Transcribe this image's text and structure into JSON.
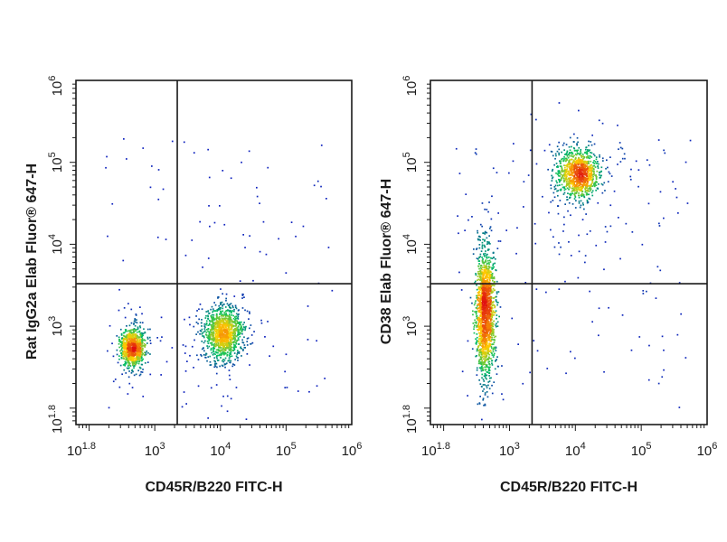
{
  "chart_data": [
    {
      "type": "scatter",
      "subtype": "flow-cytometry-density",
      "xlabel": "CD45R/B220 FITC-H",
      "ylabel": "Rat IgG2a Elab Fluor® 647-H",
      "xscale": "log",
      "yscale": "log",
      "xlim": [
        63,
        1000000
      ],
      "ylim": [
        63,
        1000000
      ],
      "x_ticks": [
        {
          "base": "10",
          "exp": "1.8",
          "value": 63
        },
        {
          "base": "10",
          "exp": "3",
          "value": 1000
        },
        {
          "base": "10",
          "exp": "4",
          "value": 10000
        },
        {
          "base": "10",
          "exp": "5",
          "value": 100000
        },
        {
          "base": "10",
          "exp": "6",
          "value": 1000000
        }
      ],
      "y_ticks": [
        {
          "base": "10",
          "exp": "1.8",
          "value": 63
        },
        {
          "base": "10",
          "exp": "3",
          "value": 1000
        },
        {
          "base": "10",
          "exp": "4",
          "value": 10000
        },
        {
          "base": "10",
          "exp": "5",
          "value": 100000
        },
        {
          "base": "10",
          "exp": "6",
          "value": 1000000
        }
      ],
      "gate": {
        "x": 2200,
        "y": 3300
      },
      "populations": [
        {
          "cx": 450,
          "cy": 560,
          "sx": 0.09,
          "sy": 0.12,
          "n": 900,
          "tail": 0.03
        },
        {
          "cx": 11000,
          "cy": 850,
          "sx": 0.15,
          "sy": 0.17,
          "n": 1200,
          "tail": 0.05
        }
      ],
      "background_n": 90
    },
    {
      "type": "scatter",
      "subtype": "flow-cytometry-density",
      "xlabel": "CD45R/B220 FITC-H",
      "ylabel": "CD38 Elab Fluor® 647-H",
      "xscale": "log",
      "yscale": "log",
      "xlim": [
        63,
        1000000
      ],
      "ylim": [
        63,
        1000000
      ],
      "x_ticks": [
        {
          "base": "10",
          "exp": "1.8",
          "value": 63
        },
        {
          "base": "10",
          "exp": "3",
          "value": 1000
        },
        {
          "base": "10",
          "exp": "4",
          "value": 10000
        },
        {
          "base": "10",
          "exp": "5",
          "value": 100000
        },
        {
          "base": "10",
          "exp": "6",
          "value": 1000000
        }
      ],
      "y_ticks": [
        {
          "base": "10",
          "exp": "1.8",
          "value": 63
        },
        {
          "base": "10",
          "exp": "3",
          "value": 1000
        },
        {
          "base": "10",
          "exp": "4",
          "value": 10000
        },
        {
          "base": "10",
          "exp": "5",
          "value": 100000
        },
        {
          "base": "10",
          "exp": "6",
          "value": 1000000
        }
      ],
      "gate": {
        "x": 2200,
        "y": 3300
      },
      "populations": [
        {
          "cx": 420,
          "cy": 1500,
          "sx": 0.07,
          "sy": 0.38,
          "n": 1600,
          "tail": 0.02
        },
        {
          "cx": 11000,
          "cy": 75000,
          "sx": 0.16,
          "sy": 0.15,
          "n": 1100,
          "tail": 0.06
        }
      ],
      "background_n": 120
    }
  ],
  "colors": {
    "density_low": "#1010c8",
    "density_mid": "#00c060",
    "density_high": "#ffd000",
    "density_peak": "#e01010",
    "axis": "#1a1a1a",
    "gate_line": "#1a1a1a"
  }
}
